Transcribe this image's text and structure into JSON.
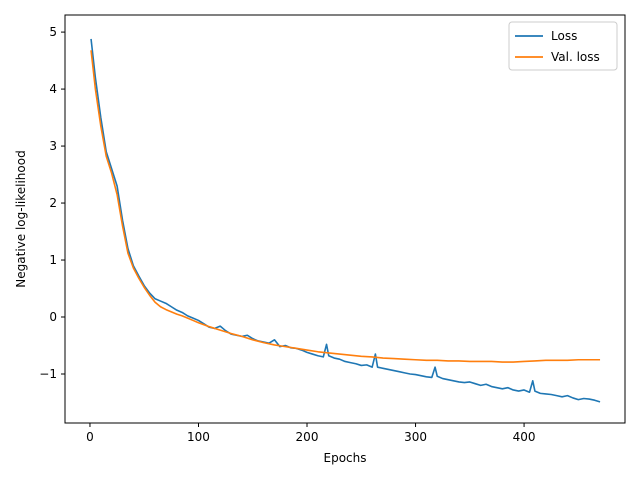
{
  "chart_data": {
    "type": "line",
    "title": "",
    "xlabel": "Epochs",
    "ylabel": "Negative log-likelihood",
    "xlim": [
      -23,
      493
    ],
    "ylim": [
      -1.86,
      5.3
    ],
    "xticks": [
      0,
      100,
      200,
      300,
      400
    ],
    "yticks": [
      -1,
      0,
      1,
      2,
      3,
      4,
      5
    ],
    "grid": false,
    "legend": "top-right",
    "series": [
      {
        "name": "Loss",
        "color": "#1f77b4",
        "x": [
          1,
          5,
          10,
          15,
          20,
          25,
          30,
          35,
          40,
          45,
          50,
          55,
          60,
          65,
          70,
          75,
          80,
          85,
          90,
          95,
          100,
          105,
          110,
          115,
          120,
          125,
          130,
          135,
          140,
          145,
          150,
          155,
          160,
          165,
          170,
          175,
          180,
          185,
          190,
          195,
          200,
          205,
          210,
          215,
          218,
          220,
          225,
          230,
          235,
          240,
          245,
          250,
          255,
          260,
          263,
          265,
          270,
          275,
          280,
          285,
          290,
          295,
          300,
          305,
          310,
          315,
          318,
          320,
          325,
          330,
          335,
          340,
          345,
          350,
          355,
          360,
          365,
          370,
          375,
          380,
          385,
          390,
          395,
          400,
          405,
          408,
          410,
          415,
          420,
          425,
          430,
          435,
          440,
          445,
          450,
          455,
          460,
          465,
          470
        ],
        "y": [
          4.88,
          4.2,
          3.5,
          2.9,
          2.6,
          2.3,
          1.7,
          1.2,
          0.9,
          0.72,
          0.55,
          0.42,
          0.32,
          0.28,
          0.24,
          0.18,
          0.12,
          0.08,
          0.02,
          -0.02,
          -0.06,
          -0.12,
          -0.18,
          -0.2,
          -0.16,
          -0.24,
          -0.3,
          -0.32,
          -0.34,
          -0.32,
          -0.38,
          -0.42,
          -0.44,
          -0.46,
          -0.4,
          -0.52,
          -0.5,
          -0.54,
          -0.55,
          -0.58,
          -0.62,
          -0.65,
          -0.68,
          -0.7,
          -0.48,
          -0.68,
          -0.72,
          -0.74,
          -0.78,
          -0.8,
          -0.82,
          -0.85,
          -0.84,
          -0.88,
          -0.65,
          -0.88,
          -0.9,
          -0.92,
          -0.94,
          -0.96,
          -0.98,
          -1.0,
          -1.01,
          -1.03,
          -1.05,
          -1.06,
          -0.88,
          -1.04,
          -1.08,
          -1.1,
          -1.12,
          -1.14,
          -1.15,
          -1.14,
          -1.17,
          -1.2,
          -1.18,
          -1.22,
          -1.24,
          -1.26,
          -1.24,
          -1.28,
          -1.3,
          -1.28,
          -1.32,
          -1.12,
          -1.3,
          -1.34,
          -1.35,
          -1.36,
          -1.38,
          -1.4,
          -1.38,
          -1.42,
          -1.45,
          -1.43,
          -1.44,
          -1.46,
          -1.49
        ]
      },
      {
        "name": "Val. loss",
        "color": "#ff7f0e",
        "x": [
          1,
          5,
          10,
          15,
          20,
          25,
          30,
          35,
          40,
          45,
          50,
          55,
          60,
          65,
          70,
          75,
          80,
          85,
          90,
          95,
          100,
          110,
          120,
          130,
          140,
          150,
          160,
          170,
          180,
          190,
          200,
          210,
          220,
          230,
          240,
          250,
          260,
          270,
          280,
          290,
          300,
          310,
          320,
          330,
          340,
          350,
          360,
          370,
          380,
          390,
          400,
          410,
          420,
          430,
          440,
          450,
          460,
          470
        ],
        "y": [
          4.68,
          4.0,
          3.35,
          2.82,
          2.52,
          2.15,
          1.6,
          1.12,
          0.86,
          0.68,
          0.52,
          0.38,
          0.26,
          0.18,
          0.13,
          0.09,
          0.05,
          0.02,
          -0.02,
          -0.06,
          -0.1,
          -0.17,
          -0.23,
          -0.29,
          -0.34,
          -0.4,
          -0.45,
          -0.49,
          -0.52,
          -0.55,
          -0.58,
          -0.61,
          -0.63,
          -0.65,
          -0.67,
          -0.69,
          -0.7,
          -0.72,
          -0.73,
          -0.74,
          -0.75,
          -0.76,
          -0.76,
          -0.77,
          -0.77,
          -0.78,
          -0.78,
          -0.78,
          -0.79,
          -0.79,
          -0.78,
          -0.77,
          -0.76,
          -0.76,
          -0.76,
          -0.75,
          -0.75,
          -0.75
        ]
      }
    ]
  }
}
